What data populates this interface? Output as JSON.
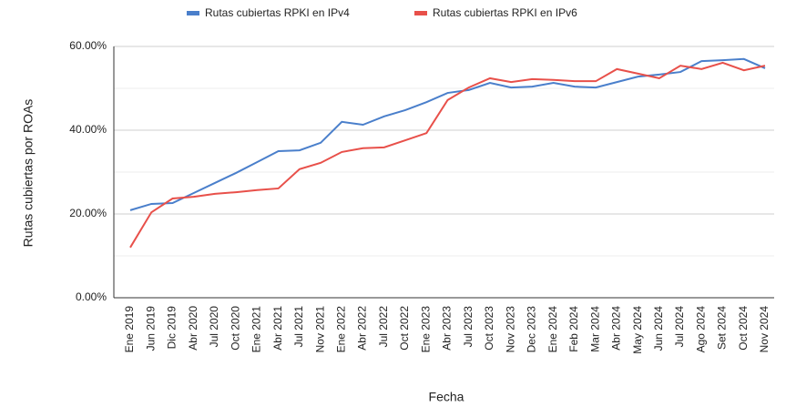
{
  "chart_data": {
    "type": "line",
    "xlabel": "Fecha",
    "ylabel": "Rutas cubiertas por ROAs",
    "categories": [
      "Ene 2019",
      "Jun 2019",
      "Dic 2019",
      "Abr 2020",
      "Jul 2020",
      "Oct 2020",
      "Ene 2021",
      "Abr 2021",
      "Jul 2021",
      "Nov 2021",
      "Ene 2022",
      "Abr 2022",
      "Jul 2022",
      "Oct 2022",
      "Ene 2023",
      "Abr 2023",
      "Jul 2023",
      "Oct 2023",
      "Nov 2023",
      "Dec 2023",
      "Ene 2024",
      "Feb 2024",
      "Mar 2024",
      "Abr 2024",
      "May 2024",
      "Jun 2024",
      "Jul 2024",
      "Ago 2024",
      "Set 2024",
      "Oct 2024",
      "Nov 2024"
    ],
    "series": [
      {
        "name": "Rutas cubiertas RPKI en IPv4",
        "color": "#4a7fcb",
        "values": [
          20.9,
          22.4,
          22.6,
          25,
          27.4,
          29.8,
          32.4,
          35,
          35.2,
          37,
          42,
          41.3,
          43.3,
          44.8,
          46.7,
          48.9,
          49.6,
          51.3,
          50.2,
          50.4,
          51.3,
          50.4,
          50.2,
          51.5,
          52.8,
          53.3,
          53.9,
          56.5,
          56.7,
          57,
          54.8
        ]
      },
      {
        "name": "Rutas cubiertas RPKI en IPv6",
        "color": "#e8504a",
        "values": [
          12,
          20.4,
          23.7,
          24.1,
          24.8,
          25.2,
          25.7,
          26.1,
          30.7,
          32.2,
          34.8,
          35.7,
          35.9,
          37.6,
          39.3,
          47.2,
          50.2,
          52.4,
          51.5,
          52.2,
          52,
          51.7,
          51.7,
          54.6,
          53.5,
          52.4,
          55.4,
          54.6,
          56.1,
          54.3,
          55.4
        ]
      }
    ],
    "ylim": [
      0,
      60
    ],
    "yticks": [
      {
        "value": 0,
        "label": "0.00%"
      },
      {
        "value": 20,
        "label": "20.00%"
      },
      {
        "value": 40,
        "label": "40.00%"
      },
      {
        "value": 60,
        "label": "60.00%"
      }
    ],
    "minor_yticks": [
      10,
      30,
      50
    ],
    "grid": true,
    "legend": "top"
  }
}
